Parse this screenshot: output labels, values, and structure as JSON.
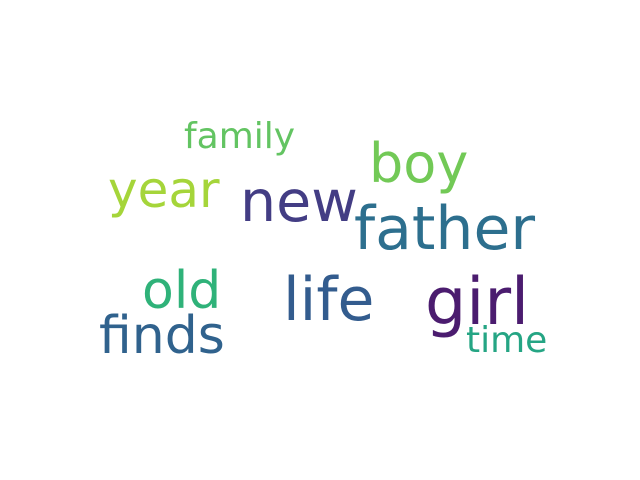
{
  "words": [
    {
      "id": "family",
      "text": "family",
      "color": "#63c462"
    },
    {
      "id": "boy",
      "text": "boy",
      "color": "#72c956"
    },
    {
      "id": "year",
      "text": "year",
      "color": "#a5d53a"
    },
    {
      "id": "new",
      "text": "new",
      "color": "#433d84"
    },
    {
      "id": "father",
      "text": "father",
      "color": "#2d6f8e"
    },
    {
      "id": "old",
      "text": "old",
      "color": "#2fb279"
    },
    {
      "id": "life",
      "text": "life",
      "color": "#335c8e"
    },
    {
      "id": "girl",
      "text": "girl",
      "color": "#4b1c6f"
    },
    {
      "id": "finds",
      "text": "finds",
      "color": "#30628d"
    },
    {
      "id": "time",
      "text": "time",
      "color": "#25a584"
    }
  ]
}
